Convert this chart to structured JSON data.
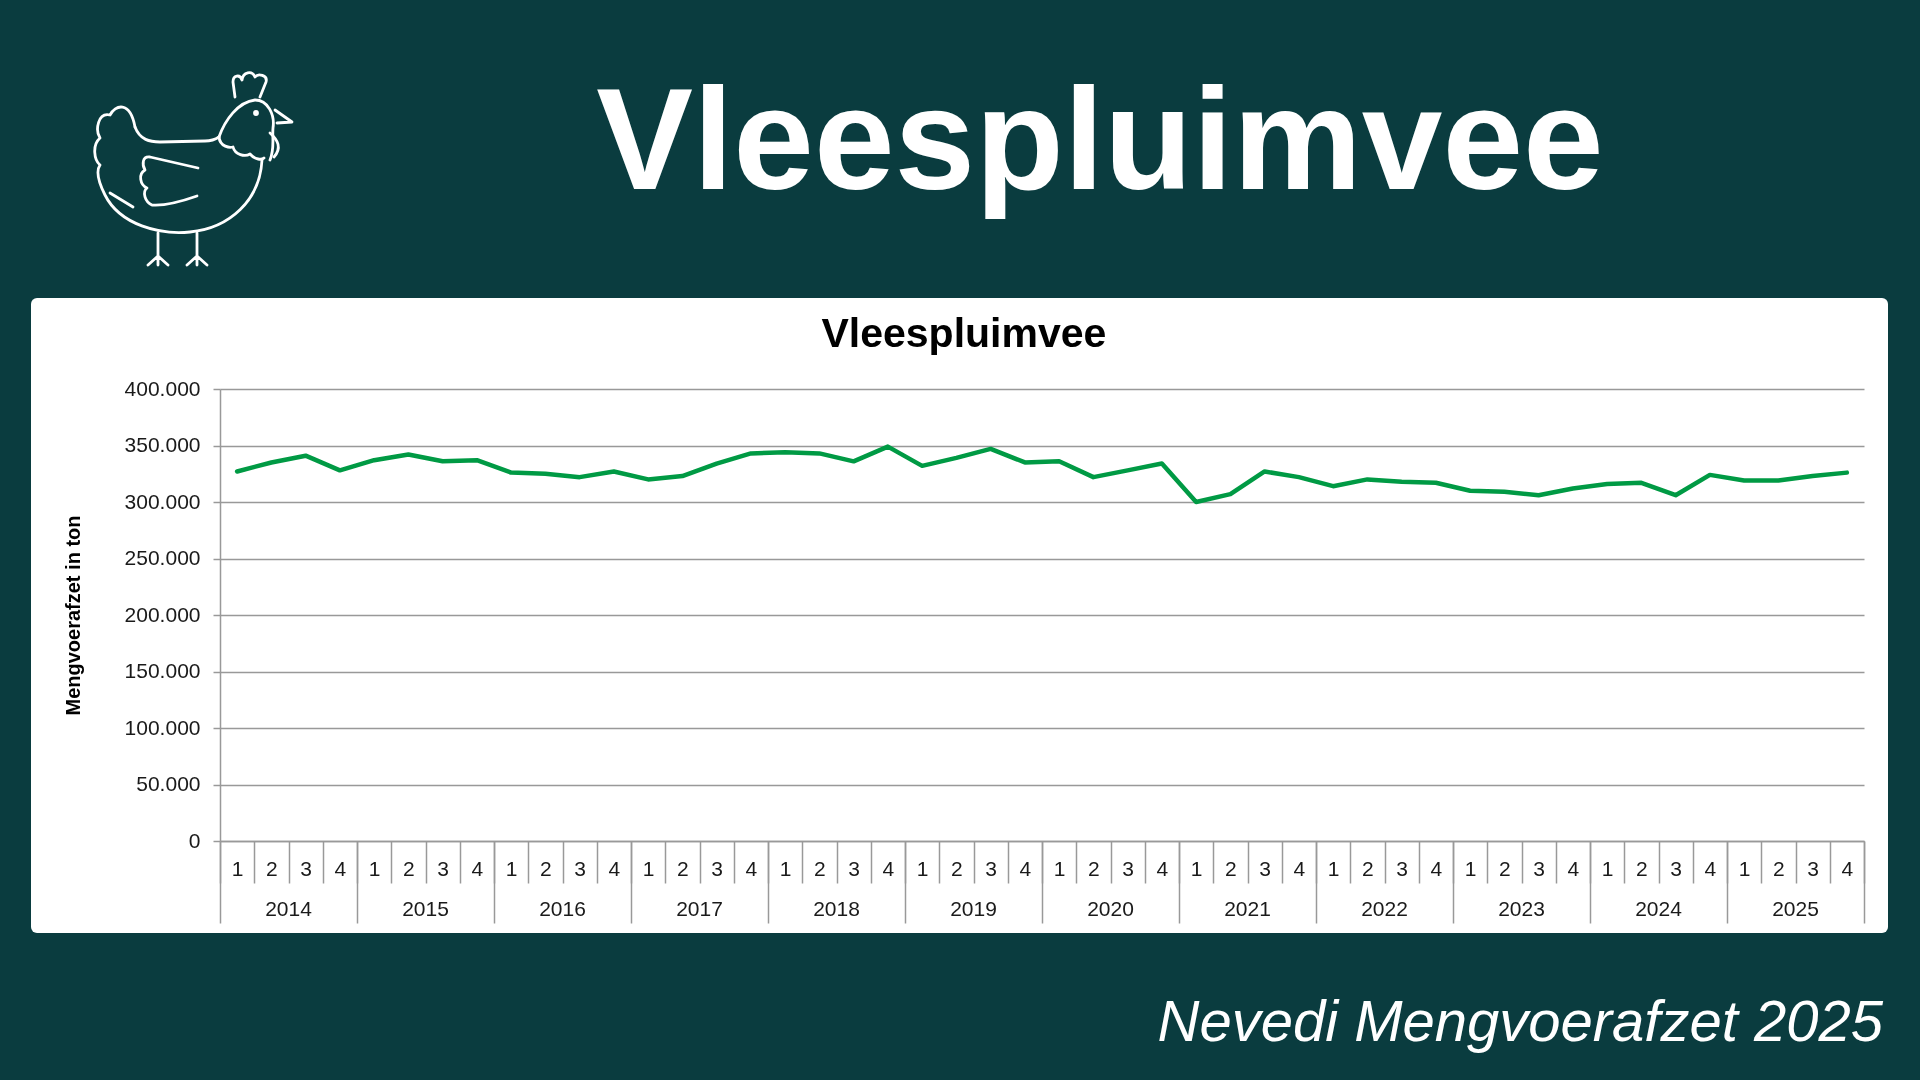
{
  "chart_data": {
    "type": "line",
    "title": "Vleespluimvee",
    "subtitle": "Vleespluimvee",
    "ylabel": "Mengvoerafzet in ton",
    "categories": [
      "1",
      "2",
      "3",
      "4",
      "1",
      "2",
      "3",
      "4",
      "1",
      "2",
      "3",
      "4",
      "1",
      "2",
      "3",
      "4",
      "1",
      "2",
      "3",
      "4",
      "1",
      "2",
      "3",
      "4",
      "1",
      "2",
      "3",
      "4",
      "1",
      "2",
      "3",
      "4",
      "1",
      "2",
      "3",
      "4",
      "1",
      "2",
      "3",
      "4",
      "1",
      "2",
      "3",
      "4",
      "1",
      "2",
      "3",
      "4"
    ],
    "series": [
      {
        "color": "#009a44",
        "values": [
          327000,
          335000,
          341000,
          328000,
          337000,
          342000,
          336000,
          337000,
          326000,
          325000,
          322000,
          327000,
          320000,
          323000,
          334000,
          343000,
          344000,
          343000,
          336000,
          349000,
          332000,
          339000,
          347000,
          335000,
          336000,
          322000,
          328000,
          334000,
          300000,
          307000,
          327000,
          322000,
          314000,
          320000,
          318000,
          317000,
          310000,
          309000,
          306000,
          312000,
          316000,
          317000,
          306000,
          324000,
          319000,
          319000,
          323000,
          326000
        ]
      }
    ],
    "ylim": [
      0,
      400000
    ],
    "yticks": [
      0,
      {
        "value": 50000,
        "label": "50.000"
      },
      {
        "value": 100000,
        "label": "100.000"
      },
      {
        "value": 150000,
        "label": "150.000"
      },
      {
        "value": 200000,
        "label": "200.000"
      },
      {
        "value": 250000,
        "label": "250.000"
      },
      {
        "value": 300000,
        "label": "300.000"
      },
      {
        "value": 350000,
        "label": "350.000"
      },
      {
        "value": 400000,
        "label": "400.000"
      }
    ],
    "grid": "y",
    "annotations": [
      "Nevedi Mengvoerafzet 2025",
      "2014",
      "2015",
      "2016",
      "2017",
      "2018",
      "2019",
      "2020",
      "2021",
      "2022",
      "2023",
      "2024",
      "2025"
    ]
  }
}
